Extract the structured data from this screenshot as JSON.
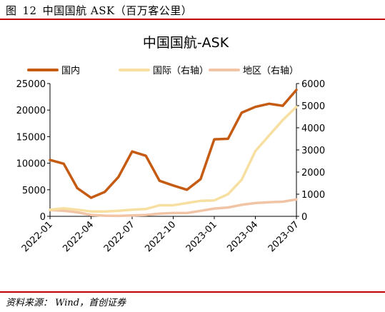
{
  "figure": {
    "label": "图",
    "number": "12",
    "caption": "中国国航 ASK（百万客公里）"
  },
  "source": "资料来源： Wind，首创证券",
  "colors": {
    "domestic": "#c55a11",
    "international": "#f6dfa0",
    "regional": "#f2c4a6",
    "rule": "#c00000"
  },
  "chart_data": {
    "type": "line",
    "title": "中国国航-ASK",
    "x": [
      "2022-01",
      "2022-02",
      "2022-03",
      "2022-04",
      "2022-05",
      "2022-06",
      "2022-07",
      "2022-08",
      "2022-09",
      "2022-10",
      "2022-11",
      "2022-12",
      "2023-01",
      "2023-02",
      "2023-03",
      "2023-04",
      "2023-05",
      "2023-06",
      "2023-07"
    ],
    "xticks": [
      "2022-01",
      "2022-04",
      "2022-07",
      "2022-10",
      "2023-01",
      "2023-04",
      "2023-07"
    ],
    "ylim": [
      0,
      25000
    ],
    "yticks": [
      0,
      5000,
      10000,
      15000,
      20000,
      25000
    ],
    "y2lim": [
      0,
      6000
    ],
    "y2ticks": [
      0,
      1000,
      2000,
      3000,
      4000,
      5000,
      6000
    ],
    "legend_position": "top",
    "series": [
      {
        "name": "国内",
        "axis": "left",
        "color": "#c55a11",
        "values": [
          10600,
          9900,
          5300,
          3500,
          4600,
          7400,
          12200,
          11400,
          6700,
          5800,
          5000,
          7000,
          14500,
          14600,
          19500,
          20600,
          21200,
          20800,
          23800
        ]
      },
      {
        "name": "国际（右轴）",
        "axis": "right",
        "color": "#f6dfa0",
        "values": [
          300,
          360,
          300,
          220,
          220,
          250,
          300,
          330,
          500,
          500,
          600,
          700,
          720,
          1000,
          1650,
          2950,
          3650,
          4350,
          4950
        ]
      },
      {
        "name": "地区（右轴）",
        "axis": "right",
        "color": "#f2c4a6",
        "values": [
          280,
          250,
          180,
          60,
          30,
          20,
          40,
          60,
          120,
          150,
          150,
          250,
          350,
          400,
          520,
          600,
          640,
          660,
          760
        ]
      }
    ]
  }
}
